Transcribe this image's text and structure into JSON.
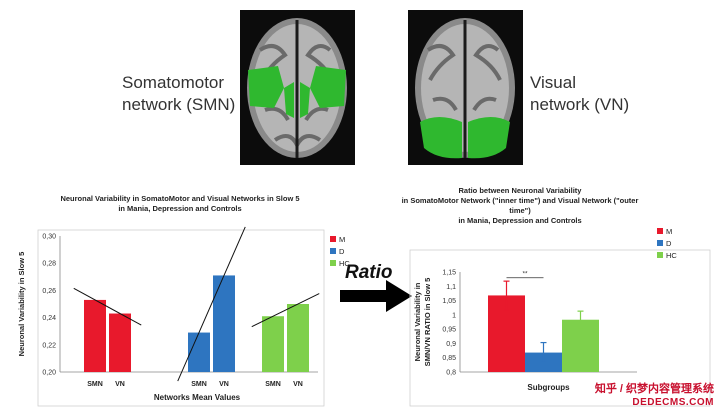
{
  "brains": {
    "smn_label_line1": "Somatomotor",
    "smn_label_line2": "network (SMN)",
    "vn_label_line1": "Visual",
    "vn_label_line2": "network (VN)"
  },
  "arrow_label": "Ratio",
  "colors": {
    "M": "#e8192c",
    "D": "#2e75c0",
    "HC": "#7ed04b",
    "brain_highlight": "#2fb82f"
  },
  "chart_data": [
    {
      "type": "bar",
      "title_lines": [
        "Neuronal Variability in SomatoMotor and Visual Networks in Slow 5",
        "in Mania, Depression and Controls"
      ],
      "ylabel": "Neuronal Variability in Slow 5",
      "xlabel": "Networks Mean Values",
      "ylim": [
        0.2,
        0.3
      ],
      "yticks": [
        "0,20",
        "0,22",
        "0,24",
        "0,26",
        "0,28",
        "0,30"
      ],
      "groups": [
        "M",
        "D",
        "HC"
      ],
      "categories": [
        "SMN",
        "VN"
      ],
      "series": [
        {
          "name": "M",
          "values": [
            0.253,
            0.243
          ]
        },
        {
          "name": "D",
          "values": [
            0.229,
            0.271
          ]
        },
        {
          "name": "HC",
          "values": [
            0.241,
            0.25
          ]
        }
      ],
      "legend": [
        "M",
        "D",
        "HC"
      ],
      "legend_position": "top-right",
      "trend_lines": true
    },
    {
      "type": "bar",
      "title_lines": [
        "Ratio between Neuronal Variability",
        "in SomatoMotor Network (\"inner time\") and Visual Network (\"outer time\")",
        "in Mania, Depression and Controls"
      ],
      "ylabel_lines": [
        "Neuronal Variability in",
        "SMN/VN RATIO in Slow 5"
      ],
      "xlabel": "Subgroups",
      "ylim": [
        0.8,
        1.15
      ],
      "yticks": [
        "0,8",
        "0,85",
        "0,9",
        "0,95",
        "1",
        "1,05",
        "1,1",
        "1,15"
      ],
      "categories": [
        "M",
        "D",
        "HC"
      ],
      "values": [
        1.068,
        0.868,
        0.983
      ],
      "errors": [
        0.05,
        0.035,
        0.03
      ],
      "significance": {
        "between": [
          "M",
          "D"
        ],
        "label": "**"
      },
      "legend": [
        "M",
        "D",
        "HC"
      ],
      "legend_position": "top-right"
    }
  ],
  "watermark": {
    "line1": "知乎 / 织梦内容管理系统",
    "line2": "DEDECMS.COM"
  }
}
